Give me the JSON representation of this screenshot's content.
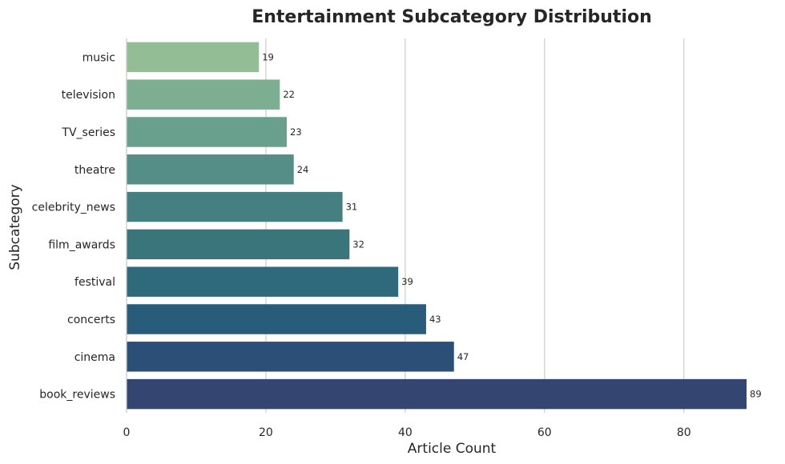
{
  "chart_data": {
    "type": "bar",
    "orientation": "horizontal",
    "title": "Entertainment Subcategory Distribution",
    "xlabel": "Article Count",
    "ylabel": "Subcategory",
    "categories": [
      "music",
      "television",
      "TV_series",
      "theatre",
      "celebrity_news",
      "film_awards",
      "festival",
      "concerts",
      "cinema",
      "book_reviews"
    ],
    "values": [
      19,
      22,
      23,
      24,
      31,
      32,
      39,
      43,
      47,
      89
    ],
    "xlim": [
      0,
      89
    ],
    "xticks": [
      0,
      20,
      40,
      60,
      80
    ],
    "grid": "vertical",
    "colors": [
      "#93bd94",
      "#7eae91",
      "#699f8d",
      "#558e87",
      "#467f82",
      "#3a757c",
      "#2f6a7c",
      "#295c7a",
      "#2c4f78",
      "#344571"
    ]
  }
}
